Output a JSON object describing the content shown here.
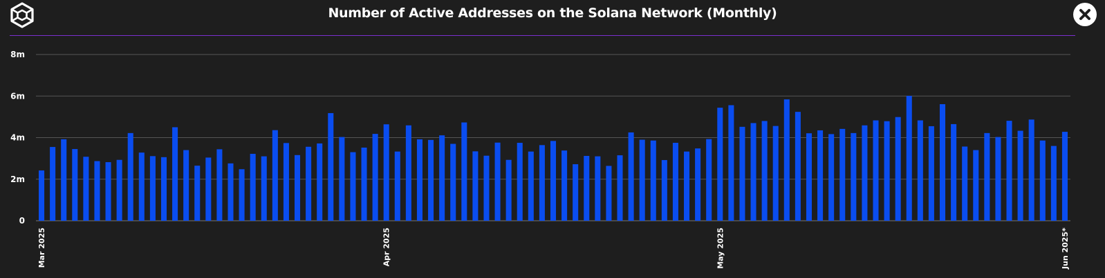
{
  "header": {
    "title": "Number of Active Addresses on the Solana Network (Monthly)",
    "close_icon": "close-icon",
    "logo_icon": "cube-logo-icon"
  },
  "colors": {
    "background": "#1e1e1e",
    "bar": "#0a4df0",
    "grid": "#555555",
    "divider": "#7b2fd0",
    "text": "#ffffff"
  },
  "chart_data": {
    "type": "bar",
    "ylim": [
      0,
      8000000
    ],
    "yticks": [
      {
        "value": 0,
        "label": "0"
      },
      {
        "value": 2000000,
        "label": "2m"
      },
      {
        "value": 4000000,
        "label": "4m"
      },
      {
        "value": 6000000,
        "label": "6m"
      },
      {
        "value": 8000000,
        "label": "8m"
      }
    ],
    "xticks": [
      {
        "index": 0,
        "label": "Mar 2025"
      },
      {
        "index": 31,
        "label": "Apr 2025"
      },
      {
        "index": 61,
        "label": "May 2025"
      },
      {
        "index": 92,
        "label": "Jun 2025*"
      }
    ],
    "grid": true,
    "values": [
      2420000,
      3550000,
      3920000,
      3450000,
      3080000,
      2870000,
      2820000,
      2930000,
      4220000,
      3280000,
      3110000,
      3060000,
      4500000,
      3400000,
      2650000,
      3040000,
      3440000,
      2760000,
      2480000,
      3220000,
      3100000,
      4360000,
      3740000,
      3160000,
      3560000,
      3720000,
      5180000,
      4030000,
      3300000,
      3520000,
      4180000,
      4640000,
      3330000,
      4590000,
      3920000,
      3890000,
      4110000,
      3700000,
      4730000,
      3340000,
      3130000,
      3760000,
      2930000,
      3750000,
      3330000,
      3640000,
      3840000,
      3380000,
      2720000,
      3120000,
      3100000,
      2640000,
      3150000,
      4250000,
      3900000,
      3860000,
      2920000,
      3750000,
      3330000,
      3480000,
      3930000,
      5440000,
      5560000,
      4520000,
      4700000,
      4800000,
      4560000,
      5840000,
      5240000,
      4210000,
      4350000,
      4170000,
      4420000,
      4220000,
      4590000,
      4830000,
      4790000,
      4990000,
      6010000,
      4830000,
      4550000,
      5610000,
      4650000,
      3570000,
      3400000,
      4220000,
      4030000,
      4810000,
      4330000,
      4870000,
      3860000,
      3600000,
      4280000
    ]
  }
}
